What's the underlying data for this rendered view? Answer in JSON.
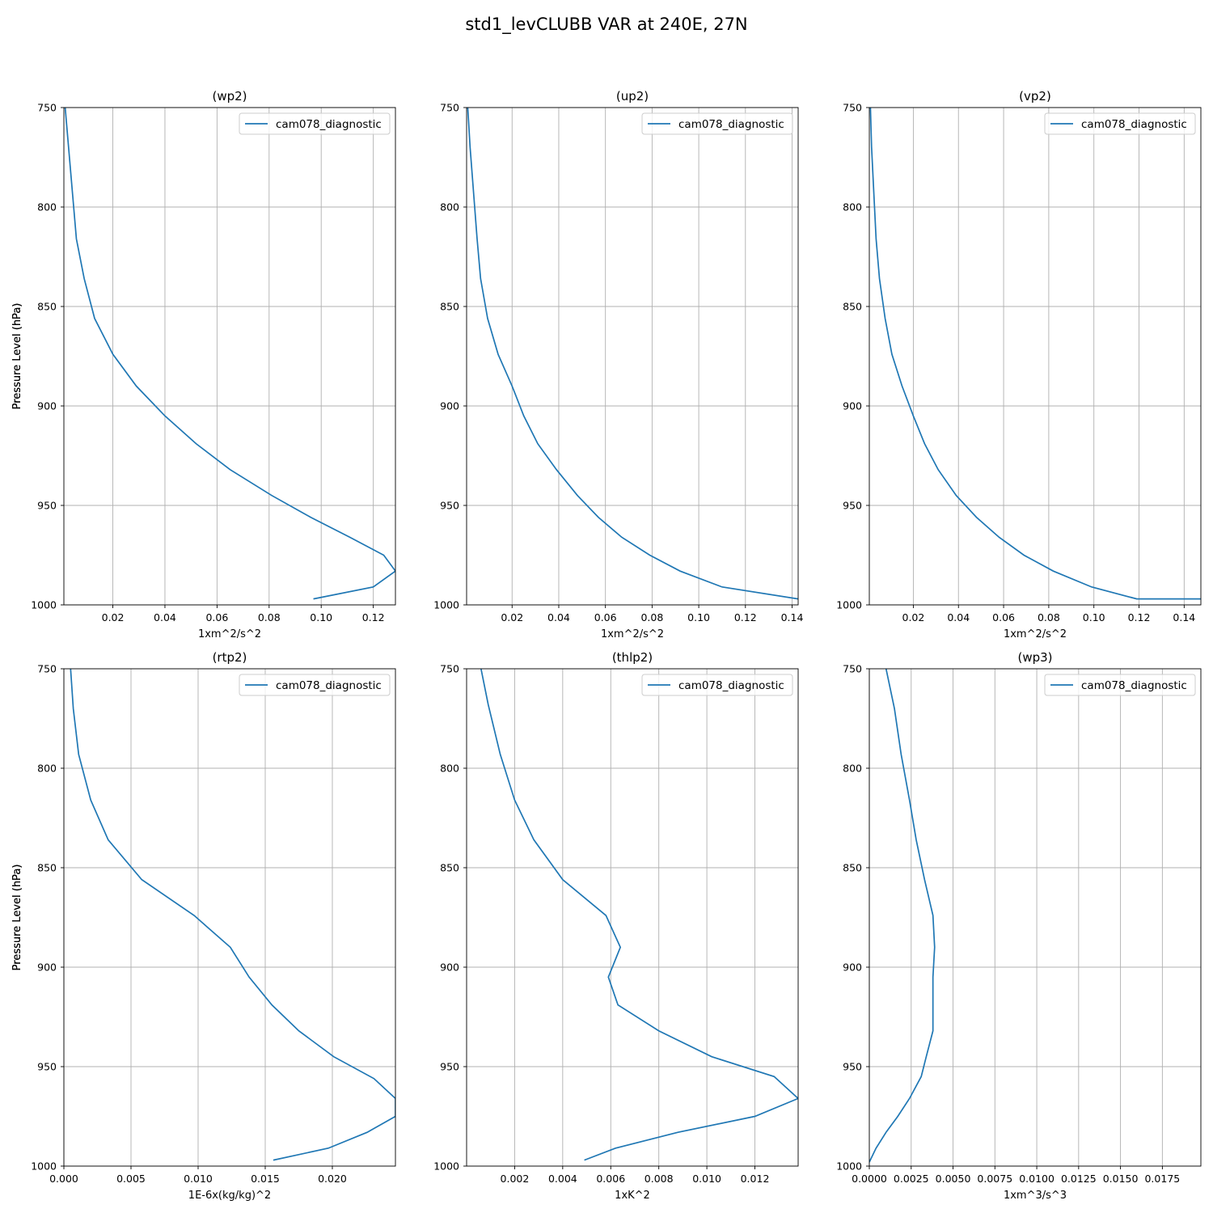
{
  "figure": {
    "title": "std1_levCLUBB VAR at 240E, 27N",
    "line_color": "#1f77b4",
    "grid": true,
    "legend_position": "upper right"
  },
  "chart_data": [
    {
      "type": "line",
      "title": "(wp2)",
      "xlabel": "1xm^2/s^2",
      "ylabel": "Pressure Level (hPa)",
      "xlim": [
        0.0012,
        0.1285
      ],
      "ylim": [
        1000,
        750
      ],
      "xticks": [
        0.02,
        0.04,
        0.06,
        0.08,
        0.1,
        0.12
      ],
      "xtick_labels": [
        "0.02",
        "0.04",
        "0.06",
        "0.08",
        "0.10",
        "0.12"
      ],
      "yticks": [
        750,
        800,
        850,
        900,
        950,
        1000
      ],
      "ytick_labels": [
        "750",
        "800",
        "850",
        "900",
        "950",
        "1000"
      ],
      "series": [
        {
          "name": "cam078_diagnostic",
          "x": [
            0.0017,
            0.003,
            0.0045,
            0.006,
            0.009,
            0.013,
            0.02,
            0.029,
            0.04,
            0.052,
            0.065,
            0.081,
            0.096,
            0.111,
            0.124,
            0.1285,
            0.12,
            0.097
          ],
          "y": [
            750,
            770,
            793,
            816,
            836,
            856,
            874,
            890,
            905,
            919,
            932,
            945,
            956,
            966,
            975,
            983,
            991,
            997
          ]
        }
      ]
    },
    {
      "type": "line",
      "title": "(up2)",
      "xlabel": "1xm^2/s^2",
      "ylabel": "Pressure Level (hPa)",
      "xlim": [
        0.0005,
        0.1426
      ],
      "ylim": [
        1000,
        750
      ],
      "xticks": [
        0.02,
        0.04,
        0.06,
        0.08,
        0.1,
        0.12,
        0.14
      ],
      "xtick_labels": [
        "0.02",
        "0.04",
        "0.06",
        "0.08",
        "0.10",
        "0.12",
        "0.14"
      ],
      "yticks": [
        750,
        800,
        850,
        900,
        950,
        1000
      ],
      "ytick_labels": [
        "750",
        "800",
        "850",
        "900",
        "950",
        "1000"
      ],
      "series": [
        {
          "name": "cam078_diagnostic",
          "x": [
            0.001,
            0.002,
            0.0035,
            0.005,
            0.0065,
            0.0095,
            0.014,
            0.02,
            0.025,
            0.031,
            0.039,
            0.048,
            0.057,
            0.067,
            0.079,
            0.092,
            0.11,
            0.1426
          ],
          "y": [
            750,
            770,
            793,
            816,
            836,
            856,
            874,
            890,
            905,
            919,
            932,
            945,
            956,
            966,
            975,
            983,
            991,
            997
          ]
        }
      ]
    },
    {
      "type": "line",
      "title": "(vp2)",
      "xlabel": "1xm^2/s^2",
      "ylabel": "Pressure Level (hPa)",
      "xlim": [
        0.0005,
        0.1474
      ],
      "ylim": [
        1000,
        750
      ],
      "xticks": [
        0.02,
        0.04,
        0.06,
        0.08,
        0.1,
        0.12,
        0.14
      ],
      "xtick_labels": [
        "0.02",
        "0.04",
        "0.06",
        "0.08",
        "0.10",
        "0.12",
        "0.14"
      ],
      "yticks": [
        750,
        800,
        850,
        900,
        950,
        1000
      ],
      "ytick_labels": [
        "750",
        "800",
        "850",
        "900",
        "950",
        "1000"
      ],
      "series": [
        {
          "name": "cam078_diagnostic",
          "x": [
            0.001,
            0.0015,
            0.0025,
            0.0035,
            0.005,
            0.0075,
            0.0105,
            0.015,
            0.02,
            0.025,
            0.031,
            0.039,
            0.048,
            0.058,
            0.069,
            0.082,
            0.099,
            0.119,
            0.1474
          ],
          "y": [
            750,
            770,
            793,
            816,
            836,
            856,
            874,
            890,
            905,
            919,
            932,
            945,
            956,
            966,
            975,
            983,
            991,
            997,
            997
          ]
        }
      ]
    },
    {
      "type": "line",
      "title": "(rtp2)",
      "xlabel": "1E-6x(kg/kg)^2",
      "ylabel": "Pressure Level (hPa)",
      "xlim": [
        0.0,
        0.0247
      ],
      "ylim": [
        1000,
        750
      ],
      "xticks": [
        0.0,
        0.005,
        0.01,
        0.015,
        0.02
      ],
      "xtick_labels": [
        "0.000",
        "0.005",
        "0.010",
        "0.015",
        "0.020"
      ],
      "yticks": [
        750,
        800,
        850,
        900,
        950,
        1000
      ],
      "ytick_labels": [
        "750",
        "800",
        "850",
        "900",
        "950",
        "1000"
      ],
      "series": [
        {
          "name": "cam078_diagnostic",
          "x": [
            0.0005,
            0.0007,
            0.0011,
            0.002,
            0.0033,
            0.0058,
            0.0097,
            0.0124,
            0.0138,
            0.0155,
            0.0175,
            0.0201,
            0.0231,
            0.0247,
            0.0247,
            0.0226,
            0.0197,
            0.0156
          ],
          "y": [
            750,
            770,
            793,
            816,
            836,
            856,
            874,
            890,
            905,
            919,
            932,
            945,
            956,
            966,
            975,
            983,
            991,
            997
          ]
        }
      ]
    },
    {
      "type": "line",
      "title": "(thlp2)",
      "xlabel": "1xK^2",
      "ylabel": "Pressure Level (hPa)",
      "xlim": [
        0.0,
        0.0138
      ],
      "ylim": [
        1000,
        750
      ],
      "xticks": [
        0.002,
        0.004,
        0.006,
        0.008,
        0.01,
        0.012
      ],
      "xtick_labels": [
        "0.002",
        "0.004",
        "0.006",
        "0.008",
        "0.010",
        "0.012"
      ],
      "yticks": [
        750,
        800,
        850,
        900,
        950,
        1000
      ],
      "ytick_labels": [
        "750",
        "800",
        "850",
        "900",
        "950",
        "1000"
      ],
      "series": [
        {
          "name": "cam078_diagnostic",
          "x": [
            0.0006,
            0.0009,
            0.0014,
            0.002,
            0.0028,
            0.004,
            0.0058,
            0.0064,
            0.0059,
            0.0063,
            0.008,
            0.0102,
            0.0128,
            0.0138,
            0.012,
            0.0088,
            0.0062,
            0.0049
          ],
          "y": [
            750,
            768,
            793,
            816,
            836,
            856,
            874,
            890,
            905,
            919,
            932,
            945,
            955,
            966,
            975,
            983,
            991,
            997
          ]
        }
      ]
    },
    {
      "type": "line",
      "title": "(wp3)",
      "xlabel": "1xm^3/s^3",
      "ylabel": "Pressure Level (hPa)",
      "xlim": [
        0.0,
        0.0198
      ],
      "ylim": [
        1000,
        750
      ],
      "xticks": [
        0.0,
        0.0025,
        0.005,
        0.0075,
        0.01,
        0.0125,
        0.015,
        0.0175
      ],
      "xtick_labels": [
        "0.0000",
        "0.0025",
        "0.0050",
        "0.0075",
        "0.0100",
        "0.0125",
        "0.0150",
        "0.0175"
      ],
      "yticks": [
        750,
        800,
        850,
        900,
        950,
        1000
      ],
      "ytick_labels": [
        "750",
        "800",
        "850",
        "900",
        "950",
        "1000"
      ],
      "series": [
        {
          "name": "cam078_diagnostic",
          "x": [
            0.001,
            0.0015,
            0.0019,
            0.0024,
            0.0028,
            0.0033,
            0.0038,
            0.0039,
            0.0038,
            0.0038,
            0.0038,
            0.0034,
            0.0031,
            0.0024,
            0.0017,
            0.001,
            0.0004,
            0.0
          ],
          "y": [
            750,
            770,
            793,
            816,
            836,
            856,
            874,
            890,
            905,
            919,
            932,
            945,
            955,
            966,
            975,
            983,
            991,
            998
          ]
        }
      ]
    }
  ]
}
